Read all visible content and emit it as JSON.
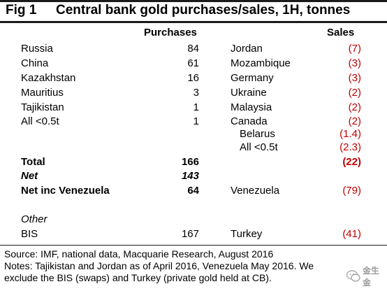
{
  "figure": {
    "label": "Fig 1",
    "title": "Central bank gold purchases/sales, 1H, tonnes"
  },
  "headers": {
    "purchases": "Purchases",
    "sales": "Sales"
  },
  "purchases": [
    {
      "name": "Russia",
      "value": "84"
    },
    {
      "name": "China",
      "value": "61"
    },
    {
      "name": "Kazakhstan",
      "value": "16"
    },
    {
      "name": "Mauritius",
      "value": "3"
    },
    {
      "name": "Tajikistan",
      "value": "1"
    },
    {
      "name": "All <0.5t",
      "value": "1"
    }
  ],
  "sales": [
    {
      "name": "Jordan",
      "value": "(7)"
    },
    {
      "name": "Mozambique",
      "value": "(3)"
    },
    {
      "name": "Germany",
      "value": "(3)"
    },
    {
      "name": "Ukraine",
      "value": "(2)"
    },
    {
      "name": "Malaysia",
      "value": "(2)"
    },
    {
      "name": "Canada",
      "value": "(2)"
    },
    {
      "name": "Belarus",
      "value": "(1.4)"
    },
    {
      "name": "All <0.5t",
      "value": "(2.3)"
    }
  ],
  "totals": {
    "total_label": "Total",
    "total_value": "166",
    "total_sales": "(22)",
    "net_label": "Net",
    "net_value": "143",
    "net_inc_label": "Net inc Venezuela",
    "net_inc_value": "64",
    "venezuela_label": "Venezuela",
    "venezuela_value": "(79)"
  },
  "other": {
    "heading": "Other",
    "bis_label": "BIS",
    "bis_value": "167",
    "turkey_label": "Turkey",
    "turkey_value": "(41)"
  },
  "footer": {
    "source": "Source: IMF, national data, Macquarie Research, August 2016",
    "notes_line1": "Notes: Tajikistan and Jordan as of April 2016, Venezuela May 2016. We",
    "notes_line2": "exclude the BIS (swaps) and Turkey (private gold held at CB)."
  },
  "watermark": {
    "text": "金生金",
    "icon": "wechat-logo-icon"
  },
  "colors": {
    "negative": "#c00000",
    "rule": "#1a1a1a"
  }
}
